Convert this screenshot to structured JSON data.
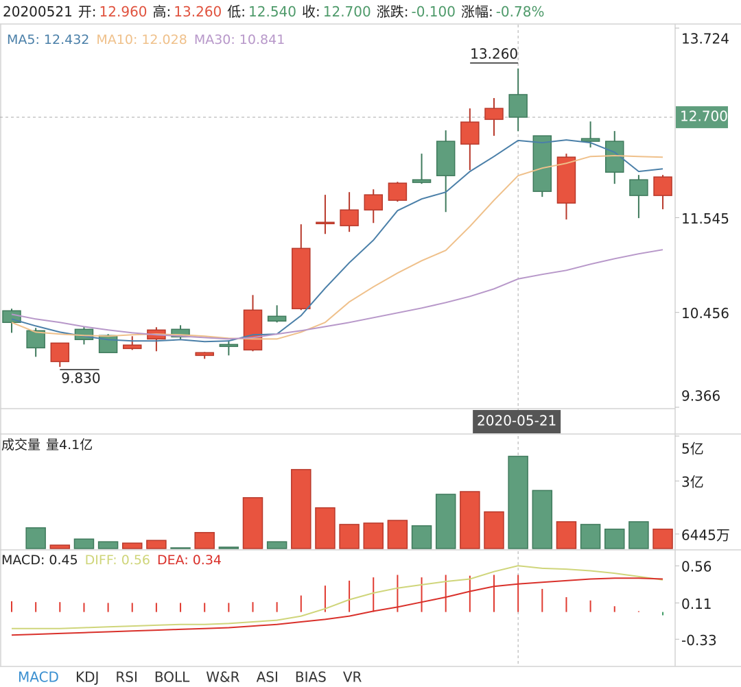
{
  "header": {
    "date": "20200521",
    "items": [
      {
        "label": "开:",
        "value": "12.960",
        "color": "#e0533f"
      },
      {
        "label": "高:",
        "value": "13.260",
        "color": "#e0533f"
      },
      {
        "label": "低:",
        "value": "12.540",
        "color": "#4e9a6a"
      },
      {
        "label": "收:",
        "value": "12.700",
        "color": "#4e9a6a"
      },
      {
        "label": "涨跌:",
        "value": "-0.100",
        "color": "#4e9a6a"
      },
      {
        "label": "涨幅:",
        "value": "-0.78%",
        "color": "#4e9a6a"
      }
    ]
  },
  "chart_data": [
    {
      "type": "candlestick",
      "categories": [
        null,
        null,
        null,
        null,
        null,
        null,
        null,
        null,
        null,
        null,
        null,
        null,
        null,
        null,
        null,
        null,
        null,
        null,
        null,
        null,
        null,
        "2020-05-21",
        null,
        null,
        null,
        null,
        null,
        null
      ],
      "open": [
        10.475,
        10.246,
        9.891,
        10.262,
        10.191,
        10.041,
        10.151,
        10.262,
        9.962,
        10.088,
        10.025,
        10.412,
        10.499,
        11.476,
        11.453,
        11.634,
        11.745,
        11.981,
        12.423,
        12.391,
        12.675,
        12.96,
        12.486,
        11.713,
        12.454,
        12.423,
        11.981,
        11.8
      ],
      "high": [
        10.499,
        10.278,
        10.104,
        10.293,
        10.207,
        10.183,
        10.286,
        10.309,
        10.002,
        10.136,
        10.656,
        10.538,
        11.469,
        11.808,
        11.839,
        11.871,
        11.957,
        12.281,
        12.549,
        12.801,
        12.92,
        13.26,
        12.486,
        12.281,
        12.651,
        12.541,
        12.036,
        12.036
      ],
      "low": [
        10.222,
        9.946,
        9.83,
        10.088,
        9.994,
        10.025,
        10.01,
        10.151,
        9.923,
        9.962,
        10.01,
        10.341,
        10.483,
        11.358,
        11.382,
        11.484,
        11.729,
        11.934,
        11.61,
        12.092,
        12.486,
        12.54,
        11.784,
        11.524,
        12.352,
        11.934,
        11.54,
        11.642
      ],
      "close": [
        10.341,
        10.049,
        10.104,
        10.144,
        9.994,
        10.081,
        10.254,
        10.175,
        9.994,
        10.065,
        10.483,
        10.357,
        11.192,
        11.492,
        11.634,
        11.808,
        11.942,
        11.95,
        12.028,
        12.644,
        12.801,
        12.7,
        11.847,
        12.241,
        12.423,
        12.068,
        11.8,
        12.013
      ],
      "up_color": "#e8543f",
      "down_color": "#5f9e7d",
      "series": [
        {
          "name": "MA5:",
          "color": "#4a7fa8",
          "last": 12.432,
          "values": [
            10.38,
            10.301,
            10.23,
            10.183,
            10.143,
            10.128,
            10.128,
            10.143,
            10.12,
            10.128,
            10.199,
            10.207,
            10.42,
            10.735,
            11.027,
            11.287,
            11.626,
            11.76,
            11.839,
            12.076,
            12.249,
            12.432,
            12.407,
            12.439,
            12.407,
            12.297,
            12.076,
            12.107
          ]
        },
        {
          "name": "MA10:",
          "color": "#efc08a",
          "last": 12.028,
          "values": [
            10.341,
            10.23,
            10.207,
            10.191,
            10.183,
            10.199,
            10.207,
            10.199,
            10.183,
            10.159,
            10.151,
            10.151,
            10.23,
            10.341,
            10.577,
            10.751,
            10.909,
            11.05,
            11.169,
            11.445,
            11.745,
            12.028,
            12.115,
            12.17,
            12.249,
            12.258,
            12.249,
            12.241
          ]
        },
        {
          "name": "MA30:",
          "color": "#b797c9",
          "last": 10.841,
          "values": [
            10.435,
            10.38,
            10.341,
            10.293,
            10.254,
            10.222,
            10.199,
            10.183,
            10.167,
            10.151,
            10.167,
            10.207,
            10.246,
            10.293,
            10.341,
            10.396,
            10.451,
            10.506,
            10.569,
            10.64,
            10.727,
            10.841,
            10.893,
            10.94,
            11.011,
            11.074,
            11.13,
            11.177
          ]
        }
      ],
      "annotations": [
        {
          "index": 21,
          "value": 13.26,
          "label": "13.260"
        },
        {
          "index": 2,
          "value": 9.83,
          "label": "9.830"
        }
      ],
      "last_price": {
        "value": 12.7,
        "label": "12.700"
      },
      "last_price_color": "#5f9e7d",
      "ylim": [
        9.366,
        13.724
      ],
      "yticks": [
        9.366,
        10.456,
        11.545,
        13.724
      ]
    },
    {
      "type": "bar",
      "title": "成交量",
      "readout": {
        "value": 4.1,
        "label": "量4.1亿"
      },
      "values": [
        null,
        0.92,
        0.15,
        0.42,
        0.3,
        0.24,
        0.36,
        0.03,
        0.71,
        0.06,
        2.26,
        0.3,
        3.51,
        1.81,
        1.07,
        1.13,
        1.25,
        1.01,
        2.41,
        2.53,
        1.63,
        4.1,
        2.58,
        1.19,
        1.07,
        0.86,
        1.19,
        0.86
      ],
      "ylim": [
        0,
        5
      ],
      "yticks": [
        {
          "value": 0.6445,
          "label": "6445万"
        },
        {
          "value": 3,
          "label": "3亿"
        },
        {
          "value": 5,
          "label": "5亿"
        }
      ]
    },
    {
      "type": "combo",
      "name": "MACD:",
      "last": 0.45,
      "up_color": "#e03a30",
      "down_color": "#3f9a64",
      "values": [
        0.13,
        0.12,
        0.12,
        0.11,
        0.11,
        0.11,
        0.11,
        0.11,
        0.11,
        0.11,
        0.12,
        0.12,
        0.2,
        0.32,
        0.38,
        0.42,
        0.45,
        0.42,
        0.45,
        0.44,
        0.45,
        0.45,
        0.28,
        0.18,
        0.14,
        0.07,
        0.01,
        -0.04
      ],
      "series": [
        {
          "name": "DIFF:",
          "color": "#cfd57a",
          "last": 0.56,
          "values": [
            -0.2,
            -0.2,
            -0.2,
            -0.19,
            -0.18,
            -0.17,
            -0.16,
            -0.15,
            -0.15,
            -0.14,
            -0.12,
            -0.1,
            -0.05,
            0.04,
            0.15,
            0.23,
            0.29,
            0.33,
            0.37,
            0.4,
            0.49,
            0.56,
            0.53,
            0.52,
            0.5,
            0.47,
            0.43,
            0.39
          ]
        },
        {
          "name": "DEA:",
          "color": "#d9302a",
          "last": 0.34,
          "values": [
            -0.28,
            -0.27,
            -0.26,
            -0.25,
            -0.24,
            -0.23,
            -0.22,
            -0.21,
            -0.2,
            -0.19,
            -0.17,
            -0.15,
            -0.12,
            -0.09,
            -0.05,
            0.01,
            0.06,
            0.12,
            0.18,
            0.25,
            0.31,
            0.34,
            0.36,
            0.38,
            0.4,
            0.41,
            0.41,
            0.4
          ]
        }
      ],
      "ylim": [
        -0.66,
        0.72
      ],
      "yticks": [
        -0.33,
        0.11,
        0.56
      ]
    }
  ],
  "tabs": {
    "items": [
      "MACD",
      "KDJ",
      "RSI",
      "BOLL",
      "W&R",
      "ASI",
      "BIAS",
      "VR"
    ],
    "active": 0
  }
}
